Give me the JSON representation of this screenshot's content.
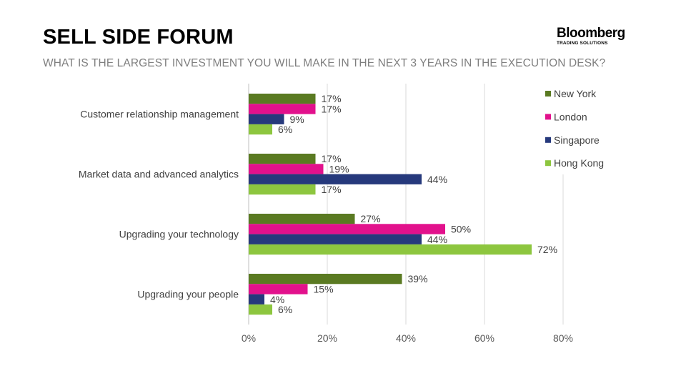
{
  "header": {
    "title": "SELL SIDE FORUM",
    "subtitle": "WHAT IS THE LARGEST INVESTMENT YOU WILL MAKE IN THE NEXT 3 YEARS IN THE EXECUTION DESK?"
  },
  "logo": {
    "name": "Bloomberg",
    "tagline": "TRADING SOLUTIONS"
  },
  "chart_data": {
    "type": "bar",
    "orientation": "horizontal",
    "categories": [
      "Customer relationship management",
      "Market data and advanced analytics",
      "Upgrading your technology",
      "Upgrading your people"
    ],
    "series": [
      {
        "name": "New York",
        "color": "#5a7a22",
        "values": [
          17,
          17,
          27,
          39
        ],
        "labels": [
          "17%",
          "17%",
          "27%",
          "39%"
        ]
      },
      {
        "name": "London",
        "color": "#e2118c",
        "values": [
          17,
          19,
          50,
          15
        ],
        "labels": [
          "17%",
          "19%",
          "50%",
          "15%"
        ]
      },
      {
        "name": "Singapore",
        "color": "#26397c",
        "values": [
          9,
          44,
          44,
          4
        ],
        "labels": [
          "9%",
          "44%",
          "44%",
          "4%"
        ]
      },
      {
        "name": "Hong Kong",
        "color": "#8dc63f",
        "values": [
          6,
          17,
          72,
          6
        ],
        "labels": [
          "6%",
          "17%",
          "72%",
          "6%"
        ]
      }
    ],
    "xlim": [
      0,
      80
    ],
    "xticks": [
      0,
      20,
      40,
      60,
      80
    ],
    "xtick_labels": [
      "0%",
      "20%",
      "40%",
      "60%",
      "80%"
    ],
    "grid": true,
    "legend_position": "right"
  }
}
